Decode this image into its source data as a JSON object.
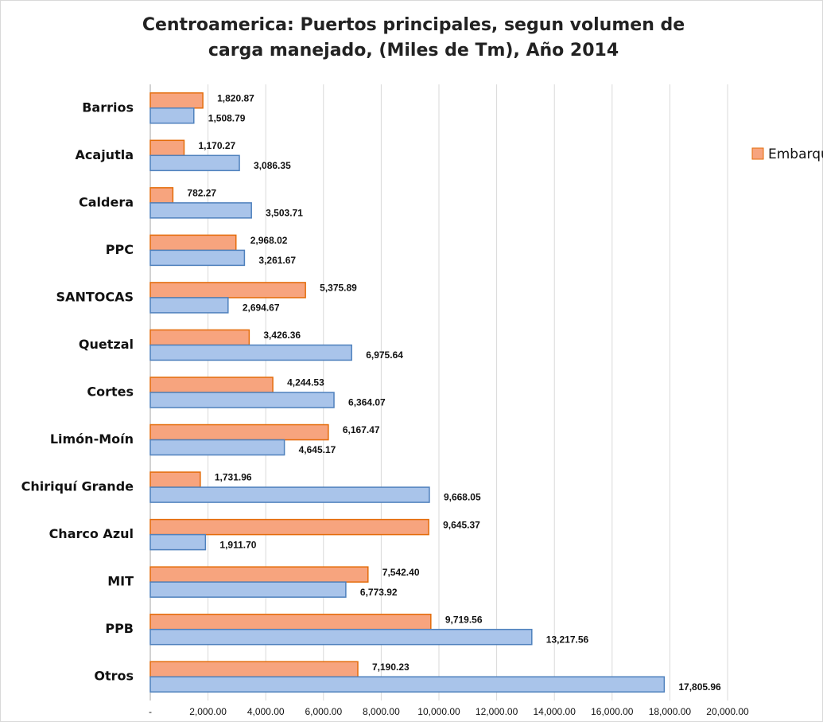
{
  "chart_data": {
    "type": "hbar",
    "title": "Centroamerica: Puertos principales, segun volumen de carga manejado, (Miles de Tm), Año 2014",
    "categories": [
      "Barrios",
      "Acajutla",
      "Caldera",
      "PPC",
      "SANTOCAS",
      "Quetzal",
      "Cortes",
      "Limón-Moín",
      "Chiriquí Grande",
      "Charco Azul",
      "MIT",
      "PPB",
      "Otros"
    ],
    "series": [
      {
        "name": "Embarque",
        "color": "#f7a47e",
        "stroke": "#e46c0a",
        "values": [
          1820.87,
          1170.27,
          782.27,
          2968.02,
          5375.89,
          3426.36,
          4244.53,
          6167.47,
          1731.96,
          9645.37,
          7542.4,
          9719.56,
          7190.23
        ],
        "value_labels": [
          "1,820.87",
          "1,170.27",
          "782.27",
          "2,968.02",
          "5,375.89",
          "3,426.36",
          "4,244.53",
          "6,167.47",
          "1,731.96",
          "9,645.37",
          "7,542.40",
          "9,719.56",
          "7,190.23"
        ]
      },
      {
        "color": "#a9c4ea",
        "stroke": "#4f81bd",
        "values": [
          1508.79,
          3086.35,
          3503.71,
          3261.67,
          2694.67,
          6975.64,
          6364.07,
          4645.17,
          9668.05,
          1911.7,
          6773.92,
          13217.56,
          17805.96
        ],
        "value_labels": [
          "1,508.79",
          "3,086.35",
          "3,503.71",
          "3,261.67",
          "2,694.67",
          "6,975.64",
          "6,364.07",
          "4,645.17",
          "9,668.05",
          "1,911.70",
          "6,773.92",
          "13,217.56",
          "17,805.96"
        ]
      }
    ],
    "xlim": [
      0,
      20000
    ],
    "xticks": [
      {
        "value": 0,
        "label": "-"
      },
      {
        "value": 2000,
        "label": "2,000.00"
      },
      {
        "value": 4000,
        "label": "4,000.00"
      },
      {
        "value": 6000,
        "label": "6,000.00"
      },
      {
        "value": 8000,
        "label": "8,000.00"
      },
      {
        "value": 10000,
        "label": "10,000.00"
      },
      {
        "value": 12000,
        "label": "12,000.00"
      },
      {
        "value": 14000,
        "label": "14,000.00"
      },
      {
        "value": 16000,
        "label": "16,000.00"
      },
      {
        "value": 18000,
        "label": "18,000.00"
      },
      {
        "value": 20000,
        "label": "20,000.00"
      }
    ],
    "grid": true,
    "legend": "upper right"
  }
}
